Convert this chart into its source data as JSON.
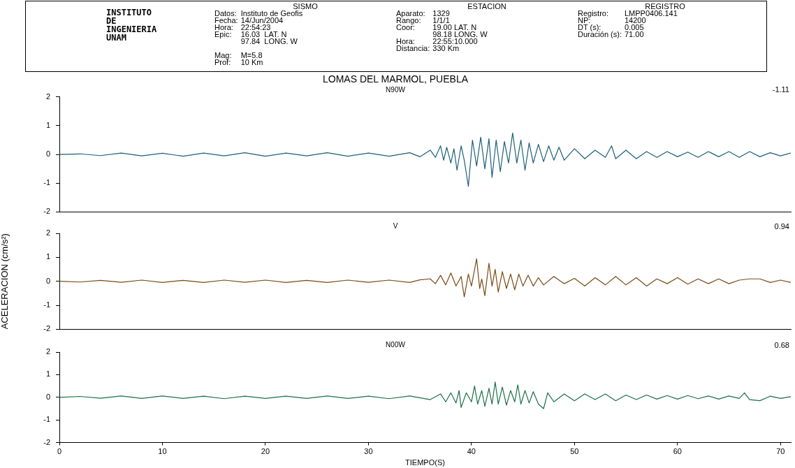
{
  "chart_data": [
    {
      "type": "other",
      "annotations": [
        "INSTITUTO\nDE\nINGENIERIA\nUNAM",
        "SISMO\nDatos:\tInstituto de Geofis\nFecha:\t14/Jun/2004\nHora:\t22:54:23\nEpic:\t16.03  LAT. N\n\t97.84  LONG. W\n\t\nMag:\tM=5.8\nProf:\t10 Km",
        "ESTACION\nAparato:\t1329\nRango:\t1/1/1\nCoor:\t19.00 LAT. N\n\t98.18 LONG. W\nHora:\t22:55:10.000\nDistancia:\t330 Km",
        "REGISTRO\nRegistro:\tLMPP0406.141\nNP:\t14200\nDT (s):\t0.005\nDuración (s):\t71.00"
      ]
    },
    {
      "type": "line",
      "title": "LOMAS DEL MARMOL, PUEBLA",
      "subtitle": "N90W",
      "annotations": [
        "-1.11"
      ],
      "xlim": [
        0,
        71
      ],
      "ylim": [
        -2,
        2
      ],
      "yticks": [
        -2,
        -1,
        0,
        1,
        2
      ],
      "tick_labels": "y",
      "grid": false,
      "legend": false,
      "marker": "none",
      "line_style": "solid",
      "series": [
        {
          "color": "#1c5f78",
          "x": [
            0,
            2,
            4,
            6,
            8,
            10,
            12,
            14,
            16,
            18,
            20,
            22,
            24,
            26,
            28,
            30,
            32,
            34,
            35,
            36,
            36.5,
            37,
            37.3,
            37.6,
            38,
            38.3,
            38.6,
            39,
            39.3,
            39.7,
            40.1,
            40.5,
            40.9,
            41.3,
            41.7,
            42,
            42.4,
            42.8,
            43.2,
            43.6,
            44,
            44.4,
            44.8,
            45.2,
            45.6,
            46,
            46.5,
            47,
            47.5,
            48,
            48.5,
            49,
            50,
            51,
            52,
            53,
            53.6,
            54,
            55,
            56,
            57,
            58,
            59,
            60,
            61,
            62,
            63,
            64,
            65,
            66,
            67,
            68,
            69,
            70,
            71
          ],
          "values": [
            0,
            0.02,
            -0.04,
            0.05,
            -0.05,
            0.04,
            -0.06,
            0.05,
            -0.05,
            0.06,
            -0.06,
            0.05,
            -0.05,
            0.06,
            -0.06,
            0.05,
            -0.06,
            0.06,
            -0.08,
            0.15,
            -0.1,
            0.3,
            -0.2,
            0.25,
            -0.3,
            0.2,
            -0.55,
            0.3,
            -0.2,
            -1.11,
            0.5,
            -0.4,
            0.6,
            -0.5,
            0.55,
            -0.8,
            0.5,
            -0.6,
            0.45,
            -0.3,
            0.75,
            -0.3,
            0.5,
            -0.55,
            0.4,
            -0.3,
            0.35,
            -0.25,
            0.3,
            -0.2,
            0.25,
            -0.2,
            0.2,
            -0.15,
            0.15,
            -0.1,
            0.3,
            -0.15,
            0.15,
            -0.15,
            0.1,
            -0.1,
            0.1,
            -0.08,
            0.08,
            -0.1,
            0.1,
            -0.08,
            0.1,
            -0.1,
            0.1,
            -0.08,
            0.06,
            -0.05,
            0.05
          ]
        }
      ]
    },
    {
      "type": "line",
      "title": "V",
      "ylabel": "ACELERACION (cm/s²)",
      "annotations": [
        "0.94"
      ],
      "xlim": [
        0,
        71
      ],
      "ylim": [
        -2,
        2
      ],
      "yticks": [
        -2,
        -1,
        0,
        1,
        2
      ],
      "tick_labels": "y",
      "grid": false,
      "legend": false,
      "marker": "none",
      "line_style": "solid",
      "series": [
        {
          "color": "#7a4a14",
          "x": [
            0,
            2,
            4,
            6,
            8,
            10,
            12,
            14,
            16,
            18,
            20,
            22,
            24,
            26,
            28,
            30,
            32,
            34,
            35,
            36,
            36.5,
            37,
            37.5,
            38,
            38.5,
            39,
            39.3,
            39.7,
            40,
            40.5,
            40.8,
            41,
            41.3,
            41.7,
            42,
            42.3,
            42.6,
            43,
            43.4,
            43.8,
            44.2,
            44.6,
            45,
            45.5,
            46,
            46.5,
            47,
            48,
            49,
            50,
            51,
            52,
            53,
            54,
            55,
            56,
            57,
            58,
            59,
            60,
            61,
            62,
            63,
            64,
            65,
            66,
            67,
            68,
            69,
            70,
            71
          ],
          "values": [
            0,
            -0.03,
            0.04,
            -0.04,
            0.05,
            -0.05,
            0.04,
            -0.05,
            0.05,
            -0.04,
            0.05,
            -0.05,
            0.04,
            -0.05,
            0.05,
            -0.04,
            0.05,
            -0.05,
            0.06,
            0.1,
            -0.1,
            0.25,
            -0.15,
            0.35,
            -0.2,
            0.2,
            -0.65,
            0.3,
            -0.2,
            0.94,
            -0.3,
            0.1,
            -0.6,
            0.75,
            -0.2,
            0.5,
            -0.45,
            0.4,
            -0.3,
            0.3,
            -0.35,
            0.3,
            -0.2,
            0.25,
            -0.2,
            0.15,
            -0.15,
            0.2,
            -0.1,
            0.12,
            -0.2,
            0.15,
            -0.15,
            0.2,
            -0.15,
            0.15,
            -0.2,
            0.1,
            -0.1,
            0.15,
            -0.12,
            0.1,
            -0.1,
            0.1,
            -0.1,
            0.05,
            0.1,
            0.1,
            -0.05,
            0.05,
            -0.05
          ]
        }
      ]
    },
    {
      "type": "line",
      "title": "N00W",
      "xlabel": "TIEMPO(S)",
      "annotations": [
        "0.68"
      ],
      "xlim": [
        0,
        71
      ],
      "ylim": [
        -2,
        2
      ],
      "yticks": [
        -2,
        -1,
        0,
        1,
        2
      ],
      "xticks": [
        0,
        10,
        20,
        30,
        40,
        50,
        60,
        70
      ],
      "grid": false,
      "legend": false,
      "marker": "none",
      "line_style": "solid",
      "series": [
        {
          "color": "#1a7048",
          "x": [
            0,
            2,
            4,
            6,
            8,
            10,
            12,
            14,
            16,
            18,
            20,
            22,
            24,
            26,
            28,
            30,
            32,
            34,
            36,
            37,
            37.5,
            38,
            38.5,
            38.8,
            39,
            39.5,
            40,
            40.3,
            40.6,
            41,
            41.3,
            41.7,
            42,
            42.3,
            42.6,
            43,
            43.4,
            43.8,
            44.2,
            44.5,
            44.8,
            45.2,
            45.6,
            46,
            46.5,
            47,
            47.4,
            48,
            49,
            50,
            51,
            52,
            53,
            54,
            55,
            56,
            57,
            58,
            59,
            60,
            61,
            62,
            63,
            64,
            65,
            66,
            66.5,
            67,
            68,
            69,
            70,
            71
          ],
          "values": [
            0,
            0.04,
            -0.04,
            0.06,
            -0.05,
            0.06,
            -0.05,
            0.05,
            -0.06,
            0.05,
            -0.05,
            0.05,
            -0.05,
            0.06,
            -0.05,
            0.05,
            -0.06,
            0.06,
            -0.1,
            0.15,
            -0.2,
            0.2,
            -0.25,
            0.3,
            -0.45,
            0.2,
            -0.2,
            0.5,
            -0.3,
            0.3,
            -0.4,
            0.4,
            -0.3,
            0.68,
            -0.3,
            0.45,
            -0.35,
            0.3,
            -0.2,
            0.55,
            -0.3,
            0.3,
            -0.25,
            0.25,
            -0.3,
            -0.5,
            0.2,
            -0.2,
            0.15,
            -0.15,
            0.15,
            -0.1,
            0.15,
            -0.15,
            0.1,
            -0.1,
            0.1,
            -0.08,
            0.08,
            -0.08,
            0.08,
            -0.06,
            0.06,
            -0.08,
            0.06,
            -0.05,
            0.2,
            -0.1,
            -0.15,
            0.05,
            -0.05,
            0.03
          ]
        }
      ]
    }
  ]
}
